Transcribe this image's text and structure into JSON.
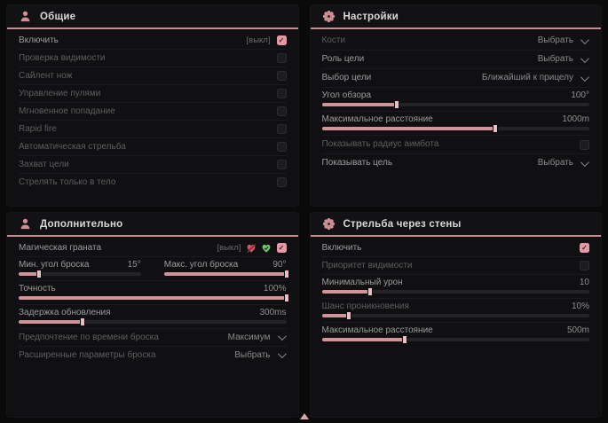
{
  "accent": "#d2939b",
  "panels": {
    "general": {
      "title": "Общие",
      "icon": "person-icon",
      "rows": [
        {
          "label": "Включить",
          "tag": "[выкл]",
          "checked": true
        },
        {
          "label": "Проверка видимости",
          "checked": false
        },
        {
          "label": "Сайлент нож",
          "checked": false
        },
        {
          "label": "Управление пулями",
          "checked": false
        },
        {
          "label": "Мгновенное попадание",
          "checked": false
        },
        {
          "label": "Rapid fire",
          "checked": false
        },
        {
          "label": "Автоматическая стрельба",
          "checked": false
        },
        {
          "label": "Захват цели",
          "checked": false
        },
        {
          "label": "Стрелять только в тело",
          "checked": false
        }
      ]
    },
    "settings": {
      "title": "Настройки",
      "icon": "gear-icon",
      "bones": {
        "label": "Кости",
        "value": "Выбрать"
      },
      "target_role": {
        "label": "Роль цели",
        "value": "Выбрать"
      },
      "target_select": {
        "label": "Выбор цели",
        "value": "Ближайший к прицелу"
      },
      "fov": {
        "label": "Угол обзора",
        "value": "100°",
        "pct": 28
      },
      "max_distance": {
        "label": "Максимальное расстояние",
        "value": "1000m",
        "pct": 65
      },
      "show_radius": {
        "label": "Показывать радиус аимбота",
        "checked": false
      },
      "show_target": {
        "label": "Показывать цель",
        "value": "Выбрать"
      }
    },
    "additional": {
      "title": "Дополнительно",
      "icon": "person-icon",
      "magic_grenade": {
        "label": "Магическая граната",
        "tag": "[выкл]",
        "checked": true
      },
      "min_angle": {
        "label": "Мин. угол броска",
        "value": "15°",
        "pct": 17
      },
      "max_angle": {
        "label": "Макс. угол броска",
        "value": "90°",
        "pct": 100
      },
      "accuracy": {
        "label": "Точность",
        "value": "100%",
        "pct": 100
      },
      "update_delay": {
        "label": "Задержка обновления",
        "value": "300ms",
        "pct": 24
      },
      "throw_time": {
        "label": "Предпочтение по времени броска",
        "value": "Максимум"
      },
      "advanced": {
        "label": "Расширенные параметры броска",
        "value": "Выбрать"
      }
    },
    "walls": {
      "title": "Стрельба через стены",
      "icon": "gear-icon",
      "enable": {
        "label": "Включить",
        "checked": true
      },
      "vis_priority": {
        "label": "Приоритет видимости",
        "checked": false
      },
      "min_damage": {
        "label": "Минимальный урон",
        "value": "10",
        "pct": 18
      },
      "penetration": {
        "label": "Шанс проникновения",
        "value": "10%",
        "pct": 10
      },
      "max_distance": {
        "label": "Максимальное расстояние",
        "value": "500m",
        "pct": 31
      }
    }
  }
}
